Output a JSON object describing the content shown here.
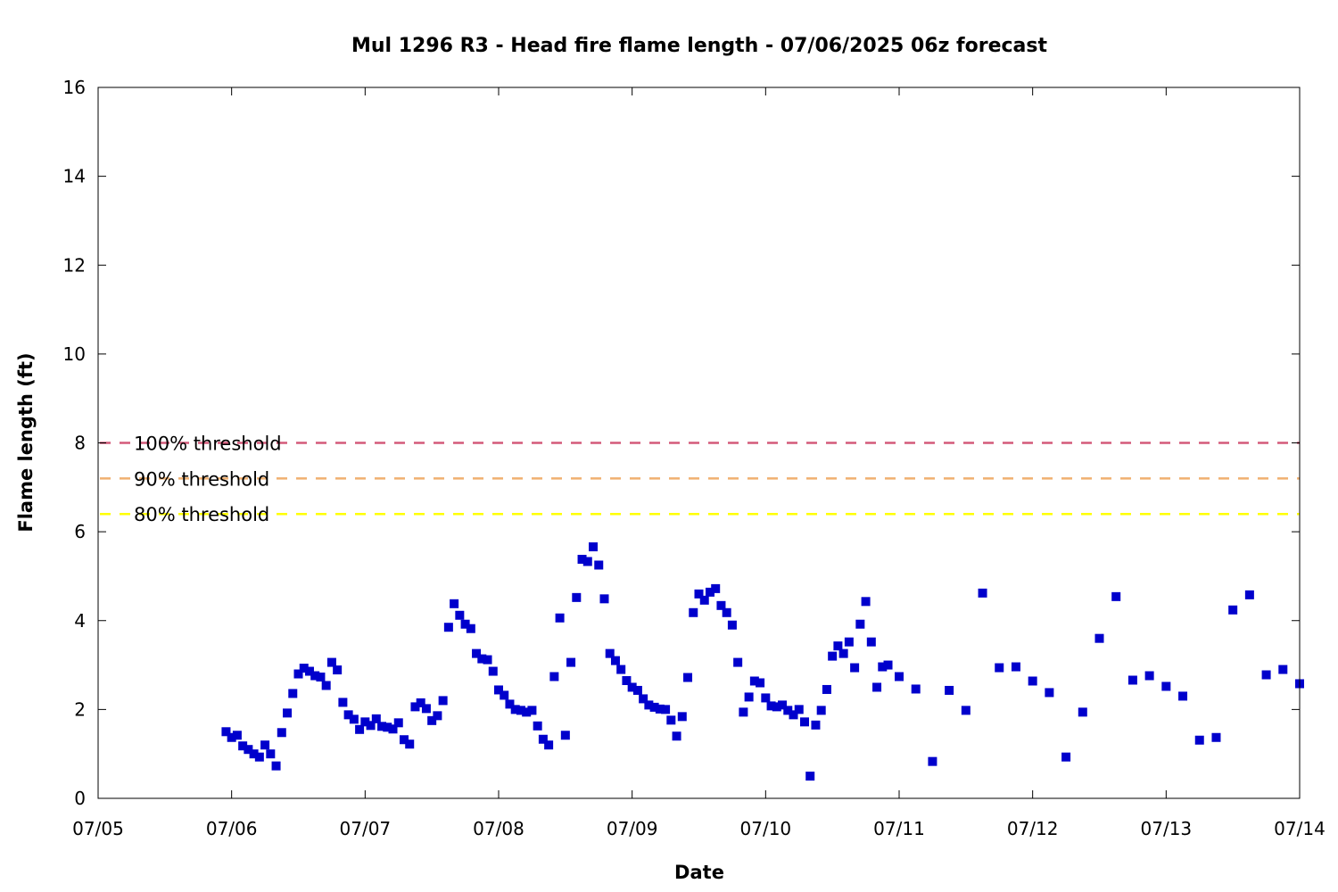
{
  "chart_data": {
    "type": "scatter",
    "title": "Mul 1296 R3 - Head fire flame length - 07/06/2025 06z forecast",
    "xlabel": "Date",
    "ylabel": "Flame length (ft)",
    "ylim": [
      0,
      16
    ],
    "yticks": [
      0,
      2,
      4,
      6,
      8,
      10,
      12,
      14,
      16
    ],
    "xlim": [
      "07/05",
      "07/14"
    ],
    "xticks": [
      "07/05",
      "07/06",
      "07/07",
      "07/08",
      "07/09",
      "07/10",
      "07/11",
      "07/12",
      "07/13",
      "07/14"
    ],
    "grid": false,
    "point_color": "#0000cc",
    "thresholds": [
      {
        "name": "100% threshold",
        "value": 8.0,
        "color": "#d45a7a"
      },
      {
        "name": "90% threshold",
        "value": 7.2,
        "color": "#f0b070"
      },
      {
        "name": "80% threshold",
        "value": 6.4,
        "color": "#ffff00"
      }
    ],
    "series": [
      {
        "x": [
          "07/05 23:00",
          "07/06 00:00",
          "07/06 01:00",
          "07/06 02:00",
          "07/06 03:00",
          "07/06 04:00",
          "07/06 05:00",
          "07/06 06:00",
          "07/06 07:00",
          "07/06 08:00",
          "07/06 09:00",
          "07/06 10:00",
          "07/06 11:00",
          "07/06 12:00",
          "07/06 13:00",
          "07/06 14:00",
          "07/06 15:00",
          "07/06 16:00",
          "07/06 17:00",
          "07/06 18:00",
          "07/06 19:00",
          "07/06 20:00",
          "07/06 21:00",
          "07/06 22:00",
          "07/06 23:00",
          "07/07 00:00",
          "07/07 01:00",
          "07/07 02:00",
          "07/07 03:00",
          "07/07 04:00",
          "07/07 05:00",
          "07/07 06:00",
          "07/07 07:00",
          "07/07 08:00",
          "07/07 09:00",
          "07/07 10:00",
          "07/07 11:00",
          "07/07 12:00",
          "07/07 13:00",
          "07/07 14:00",
          "07/07 15:00",
          "07/07 16:00",
          "07/07 17:00",
          "07/07 18:00",
          "07/07 19:00",
          "07/07 20:00",
          "07/07 21:00",
          "07/07 22:00",
          "07/07 23:00",
          "07/08 00:00",
          "07/08 01:00",
          "07/08 02:00",
          "07/08 03:00",
          "07/08 04:00",
          "07/08 05:00",
          "07/08 06:00",
          "07/08 07:00",
          "07/08 08:00",
          "07/08 09:00",
          "07/08 10:00",
          "07/08 11:00",
          "07/08 12:00",
          "07/08 13:00",
          "07/08 14:00",
          "07/08 15:00",
          "07/08 16:00",
          "07/08 17:00",
          "07/08 18:00",
          "07/08 19:00",
          "07/08 20:00",
          "07/08 21:00",
          "07/08 22:00",
          "07/08 23:00",
          "07/09 00:00",
          "07/09 01:00",
          "07/09 02:00",
          "07/09 03:00",
          "07/09 04:00",
          "07/09 05:00",
          "07/09 06:00",
          "07/09 07:00",
          "07/09 08:00",
          "07/09 09:00",
          "07/09 10:00",
          "07/09 11:00",
          "07/09 12:00",
          "07/09 13:00",
          "07/09 14:00",
          "07/09 15:00",
          "07/09 16:00",
          "07/09 17:00",
          "07/09 18:00",
          "07/09 19:00",
          "07/09 20:00",
          "07/09 21:00",
          "07/09 22:00",
          "07/09 23:00",
          "07/10 00:00",
          "07/10 01:00",
          "07/10 02:00",
          "07/10 03:00",
          "07/10 04:00",
          "07/10 05:00",
          "07/10 06:00",
          "07/10 07:00",
          "07/10 08:00",
          "07/10 09:00",
          "07/10 10:00",
          "07/10 11:00",
          "07/10 12:00",
          "07/10 13:00",
          "07/10 14:00",
          "07/10 15:00",
          "07/10 16:00",
          "07/10 17:00",
          "07/10 18:00",
          "07/10 19:00",
          "07/10 20:00",
          "07/10 21:00",
          "07/10 22:00",
          "07/11 00:00",
          "07/11 03:00",
          "07/11 06:00",
          "07/11 09:00",
          "07/11 12:00",
          "07/11 15:00",
          "07/11 18:00",
          "07/11 21:00",
          "07/12 00:00",
          "07/12 03:00",
          "07/12 06:00",
          "07/12 09:00",
          "07/12 12:00",
          "07/12 15:00",
          "07/12 18:00",
          "07/12 21:00",
          "07/13 00:00",
          "07/13 03:00",
          "07/13 06:00",
          "07/13 09:00",
          "07/13 12:00",
          "07/13 15:00",
          "07/13 18:00",
          "07/13 21:00",
          "07/14 00:00"
        ],
        "y": [
          1.5,
          1.37,
          1.42,
          1.18,
          1.1,
          1.0,
          0.93,
          1.2,
          1.0,
          0.73,
          1.48,
          1.92,
          2.36,
          2.8,
          2.93,
          2.86,
          2.76,
          2.73,
          2.54,
          3.06,
          2.89,
          2.16,
          1.88,
          1.78,
          1.55,
          1.72,
          1.64,
          1.79,
          1.62,
          1.6,
          1.56,
          1.7,
          1.32,
          1.22,
          2.06,
          2.15,
          2.02,
          1.75,
          1.86,
          2.2,
          3.85,
          4.38,
          4.12,
          3.92,
          3.82,
          3.26,
          3.14,
          3.12,
          2.86,
          2.44,
          2.32,
          2.12,
          2.0,
          1.98,
          1.94,
          1.98,
          1.63,
          1.33,
          1.2,
          2.74,
          4.06,
          1.42,
          3.06,
          4.52,
          5.38,
          5.33,
          5.66,
          5.25,
          4.49,
          3.26,
          3.1,
          2.9,
          2.65,
          2.5,
          2.43,
          2.24,
          2.1,
          2.05,
          2.01,
          2.0,
          1.76,
          1.4,
          1.84,
          2.72,
          4.18,
          4.6,
          4.46,
          4.64,
          4.72,
          4.34,
          4.18,
          3.9,
          3.06,
          1.94,
          2.28,
          2.64,
          2.6,
          2.26,
          2.08,
          2.06,
          2.1,
          1.98,
          1.88,
          2.0,
          1.72,
          0.5,
          1.65,
          1.98,
          2.45,
          3.2,
          3.43,
          3.26,
          3.52,
          2.94,
          3.92,
          4.43,
          3.52,
          2.5,
          2.96,
          3.0,
          2.74,
          2.46,
          0.83,
          2.43,
          1.98,
          4.62,
          2.94,
          2.96,
          2.64,
          2.38,
          0.93,
          1.94,
          3.6,
          4.54,
          2.66,
          2.76,
          2.52,
          2.3,
          1.31,
          1.37,
          4.24,
          4.58,
          2.78,
          2.9,
          2.58
        ]
      }
    ]
  }
}
